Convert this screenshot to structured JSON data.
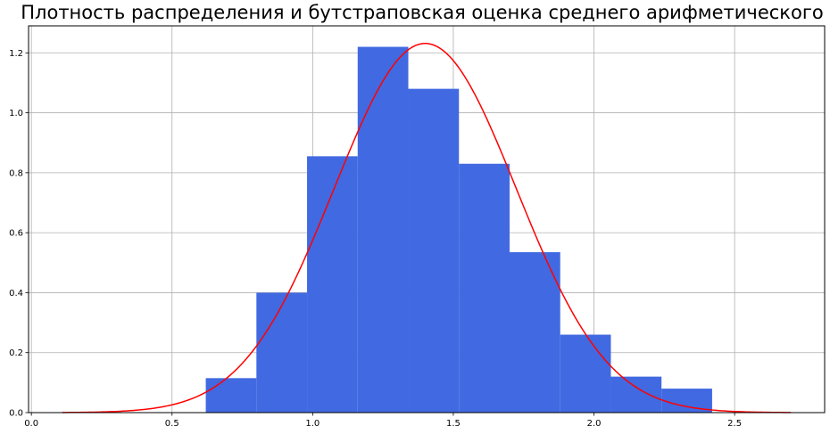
{
  "chart_data": {
    "type": "bar",
    "title": "Плотность распределения и бутстраповская оценка среднего арифметического",
    "xlabel": "",
    "ylabel": "",
    "xlim": [
      -0.01,
      2.82
    ],
    "ylim": [
      0,
      1.29
    ],
    "grid": true,
    "bin_edges": [
      0.62,
      0.8,
      0.98,
      1.16,
      1.34,
      1.52,
      1.7,
      1.88,
      2.06,
      2.24,
      2.42
    ],
    "values": [
      0.115,
      0.4,
      0.855,
      1.22,
      1.08,
      0.83,
      0.535,
      0.26,
      0.12,
      0.08
    ],
    "bar_color": "#4169e1",
    "x_ticks": [
      {
        "value": 0.0,
        "label": "0.0"
      },
      {
        "value": 0.5,
        "label": "0.5"
      },
      {
        "value": 1.0,
        "label": "1.0"
      },
      {
        "value": 1.5,
        "label": "1.5"
      },
      {
        "value": 2.0,
        "label": "2.0"
      },
      {
        "value": 2.5,
        "label": "2.5"
      }
    ],
    "y_ticks": [
      {
        "value": 0.0,
        "label": "0.0"
      },
      {
        "value": 0.2,
        "label": "0.2"
      },
      {
        "value": 0.4,
        "label": "0.4"
      },
      {
        "value": 0.6,
        "label": "0.6"
      },
      {
        "value": 0.8,
        "label": "0.8"
      },
      {
        "value": 1.0,
        "label": "1.0"
      },
      {
        "value": 1.2,
        "label": "1.2"
      }
    ],
    "curve": {
      "kind": "normal_pdf",
      "mean": 1.4,
      "std": 0.324,
      "x_range": [
        0.11,
        2.7
      ],
      "color": "#ff0000"
    }
  }
}
